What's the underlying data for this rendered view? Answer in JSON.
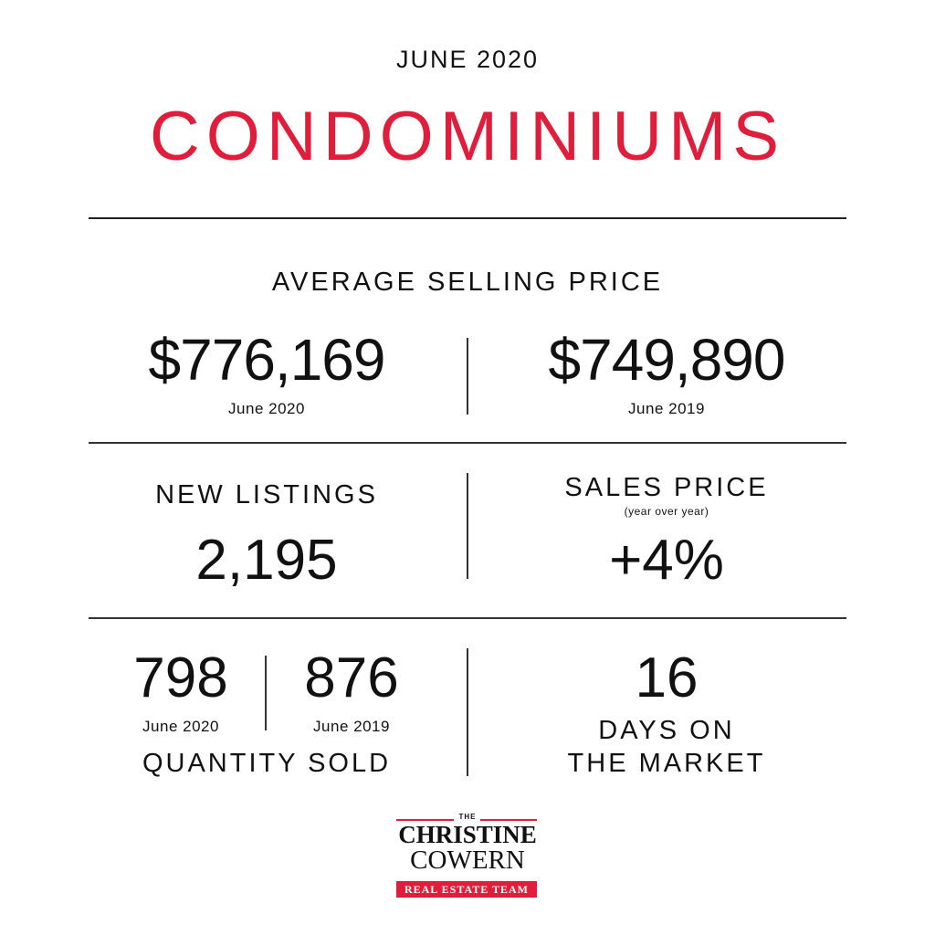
{
  "header": {
    "month": "JUNE 2020",
    "title": "CONDOMINIUMS"
  },
  "average_selling_price": {
    "label": "AVERAGE SELLING PRICE",
    "current_value": "$776,169",
    "current_period": "June 2020",
    "previous_value": "$749,890",
    "previous_period": "June 2019"
  },
  "new_listings": {
    "label": "NEW LISTINGS",
    "value": "2,195"
  },
  "sales_price": {
    "label": "SALES PRICE",
    "sublabel": "(year over year)",
    "value": "+4%"
  },
  "quantity_sold": {
    "current_value": "798",
    "current_period": "June 2020",
    "previous_value": "876",
    "previous_period": "June 2019",
    "label": "QUANTITY SOLD"
  },
  "days_on_market": {
    "value": "16",
    "label_line1": "DAYS ON",
    "label_line2": "THE MARKET"
  },
  "logo": {
    "the": "THE",
    "line1": "CHRISTINE",
    "line2": "COWERN",
    "banner": "REAL ESTATE TEAM"
  },
  "colors": {
    "accent": "#e01e3c",
    "text": "#111111",
    "background": "#ffffff"
  }
}
